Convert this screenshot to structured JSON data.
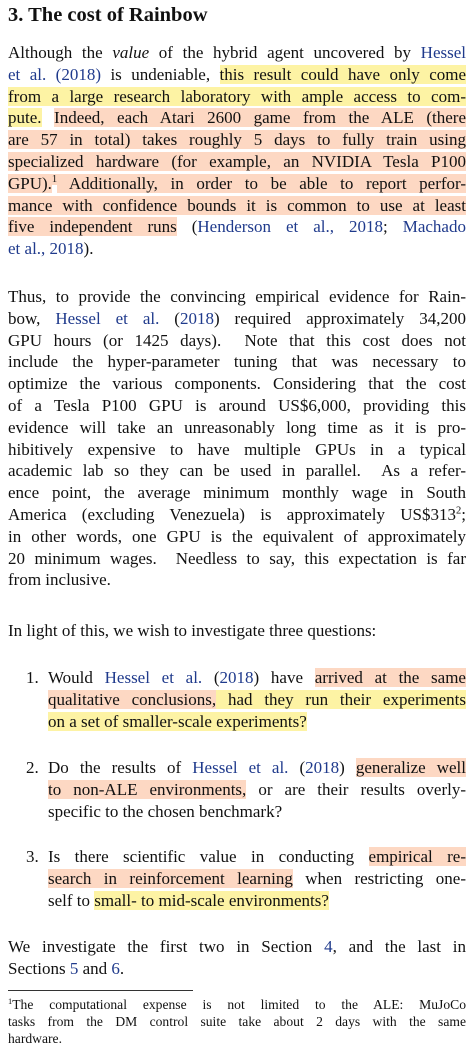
{
  "heading": "3. The cost of Rainbow",
  "colors": {
    "yellow": "#fdf3a4",
    "salmon": "#fdd8c3",
    "link": "#1f3a8c"
  },
  "paragraphs": [
    {
      "lines": [
        [
          {
            "text": "Although the "
          },
          {
            "text": "value",
            "italic": true
          },
          {
            "text": " of the hybrid agent uncovered by "
          },
          {
            "text": "Hessel",
            "color": "link"
          }
        ],
        [
          {
            "text": "et al. (2018)",
            "color": "link"
          },
          {
            "text": " is undeniable, "
          },
          {
            "text": "this result could have only come",
            "hl": "yellow"
          }
        ],
        [
          {
            "text": "from a large research laboratory with ample access to com-",
            "hl": "yellow"
          }
        ],
        [
          {
            "text": "pute.",
            "hl": "yellow"
          },
          {
            "text": " "
          },
          {
            "text": "Indeed, each Atari 2600 game from the ALE (there",
            "hl": "salmon"
          }
        ],
        [
          {
            "text": "are 57 in total) takes roughly 5 days to fully train using",
            "hl": "salmon"
          }
        ],
        [
          {
            "text": "specialized hardware (for example, an NVIDIA Tesla P100",
            "hl": "salmon"
          }
        ],
        [
          {
            "text": "GPU).",
            "hl": "salmon"
          },
          {
            "text": "1",
            "hl": "salmon",
            "sup": true
          },
          {
            "text": " Additionally, in order to be able to report perfor-",
            "hl": "salmon"
          }
        ],
        [
          {
            "text": "mance with confidence bounds it is common to use at least",
            "hl": "salmon"
          }
        ],
        [
          {
            "text": "five independent runs",
            "hl": "salmon"
          },
          {
            "text": " ("
          },
          {
            "text": "Henderson et al., 2018",
            "color": "link"
          },
          {
            "text": "; "
          },
          {
            "text": "Machado",
            "color": "link"
          }
        ],
        [
          {
            "text": "et al., 2018",
            "color": "link"
          },
          {
            "text": ")."
          }
        ]
      ]
    },
    {
      "lines": [
        [
          {
            "text": "Thus, to provide the convincing empirical evidence for Rain-"
          }
        ],
        [
          {
            "text": "bow, "
          },
          {
            "text": "Hessel et al.",
            "color": "link"
          },
          {
            "text": " ("
          },
          {
            "text": "2018",
            "color": "link"
          },
          {
            "text": ") required approximately 34,200"
          }
        ],
        [
          {
            "text": "GPU hours (or 1425 days).  Note that this cost does not"
          }
        ],
        [
          {
            "text": "include the hyper-parameter tuning that was necessary to"
          }
        ],
        [
          {
            "text": "optimize the various components. Considering that the cost"
          }
        ],
        [
          {
            "text": "of a Tesla P100 GPU is around US$6,000, providing this"
          }
        ],
        [
          {
            "text": "evidence will take an unreasonably long time as it is pro-"
          }
        ],
        [
          {
            "text": "hibitively expensive to have multiple GPUs in a typical"
          }
        ],
        [
          {
            "text": "academic lab so they can be used in parallel.  As a refer-"
          }
        ],
        [
          {
            "text": "ence point, the average minimum monthly wage in South"
          }
        ],
        [
          {
            "text": "America (excluding Venezuela) is approximately US$313"
          },
          {
            "text": "2",
            "sup": true
          },
          {
            "text": ";"
          }
        ],
        [
          {
            "text": "in other words, one GPU is the equivalent of approximately"
          }
        ],
        [
          {
            "text": "20 minimum wages.  Needless to say, this expectation is far"
          }
        ],
        [
          {
            "text": "from inclusive."
          }
        ]
      ]
    },
    {
      "lines": [
        [
          {
            "text": "In light of this, we wish to investigate three questions:"
          }
        ]
      ]
    },
    {
      "lines": [
        [
          {
            "text": "We investigate the first two in Section "
          },
          {
            "text": "4",
            "color": "link"
          },
          {
            "text": ", and the last in"
          }
        ],
        [
          {
            "text": "Sections "
          },
          {
            "text": "5",
            "color": "link"
          },
          {
            "text": " and "
          },
          {
            "text": "6",
            "color": "link"
          },
          {
            "text": "."
          }
        ]
      ]
    }
  ],
  "list": {
    "items": [
      {
        "marker": "1.",
        "lines": [
          [
            {
              "text": "Would "
            },
            {
              "text": "Hessel et al.",
              "color": "link"
            },
            {
              "text": " ("
            },
            {
              "text": "2018",
              "color": "link"
            },
            {
              "text": ") have "
            },
            {
              "text": "arrived at the same",
              "hl": "salmon"
            }
          ],
          [
            {
              "text": "qualitative conclusions,",
              "hl": "salmon"
            },
            {
              "text": " had they run their experiments",
              "hl": "yellow"
            }
          ],
          [
            {
              "text": "on a set of smaller-scale experiments?",
              "hl": "yellow"
            }
          ]
        ]
      },
      {
        "marker": "2.",
        "lines": [
          [
            {
              "text": "Do the results of "
            },
            {
              "text": "Hessel et al.",
              "color": "link"
            },
            {
              "text": " ("
            },
            {
              "text": "2018",
              "color": "link"
            },
            {
              "text": ") "
            },
            {
              "text": "generalize well",
              "hl": "salmon"
            }
          ],
          [
            {
              "text": "to non-ALE environments,",
              "hl": "salmon"
            },
            {
              "text": " or are their results overly-"
            }
          ],
          [
            {
              "text": "specific to the chosen benchmark?"
            }
          ]
        ]
      },
      {
        "marker": "3.",
        "lines": [
          [
            {
              "text": "Is there scientific value in conducting "
            },
            {
              "text": "empirical re-",
              "hl": "salmon"
            }
          ],
          [
            {
              "text": "search in reinforcement learning",
              "hl": "salmon"
            },
            {
              "text": " when restricting one-"
            }
          ],
          [
            {
              "text": "self to "
            },
            {
              "text": "small- to mid-scale environments?",
              "hl": "yellow"
            }
          ]
        ]
      }
    ]
  },
  "footnote": {
    "lines": [
      [
        {
          "text": "1",
          "sup": true
        },
        {
          "text": "The computational expense is not limited to the ALE: MuJoCo"
        }
      ],
      [
        {
          "text": "tasks from the DM control suite take about 2 days with the same"
        }
      ],
      [
        {
          "text": "hardware."
        }
      ]
    ]
  }
}
